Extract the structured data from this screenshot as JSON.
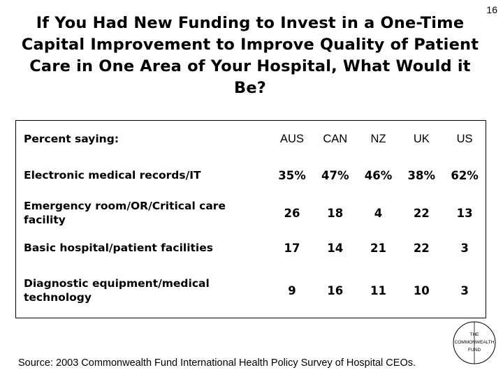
{
  "page_number": "16",
  "title": "If You Had New Funding to Invest in a One-Time Capital Improvement to Improve Quality of Patient Care in One Area of Your Hospital, What Would it Be?",
  "table": {
    "header_label": "Percent saying:",
    "columns": [
      "AUS",
      "CAN",
      "NZ",
      "UK",
      "US"
    ],
    "rows": [
      {
        "label": "Electronic medical records/IT",
        "values": [
          "35%",
          "47%",
          "46%",
          "38%",
          "62%"
        ]
      },
      {
        "label": "Emergency room/OR/Critical care facility",
        "values": [
          "26",
          "18",
          "4",
          "22",
          "13"
        ]
      },
      {
        "label": "Basic hospital/patient facilities",
        "values": [
          "17",
          "14",
          "21",
          "22",
          "3"
        ]
      },
      {
        "label": "Diagnostic equipment/medical technology",
        "values": [
          "9",
          "16",
          "11",
          "10",
          "3"
        ]
      }
    ]
  },
  "source": "Source: 2003 Commonwealth Fund International Health Policy Survey of Hospital CEOs.",
  "logo": {
    "line1": "THE",
    "line2": "COMMONWEALTH",
    "line3": "FUND"
  }
}
